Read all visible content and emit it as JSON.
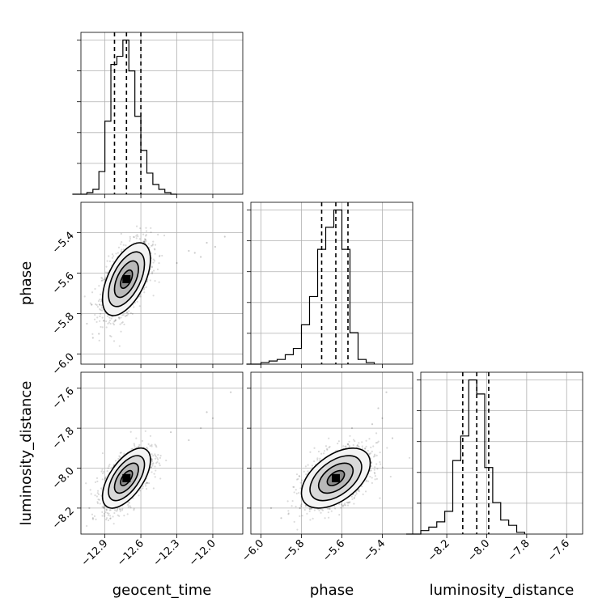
{
  "chart_data": {
    "type": "corner",
    "parameters": [
      {
        "key": "geocent_time",
        "label": "geocent_time",
        "range": [
          -13.1,
          -11.75
        ],
        "ticks": [
          -12.9,
          -12.6,
          -12.3,
          -12.0
        ],
        "tick_labels": [
          "−12.9",
          "−12.6",
          "−12.3",
          "−12.0"
        ],
        "quantiles": [
          -12.82,
          -12.72,
          -12.6
        ]
      },
      {
        "key": "phase",
        "label": "phase",
        "range": [
          -6.05,
          -5.25
        ],
        "ticks": [
          -6.0,
          -5.8,
          -5.6,
          -5.4
        ],
        "tick_labels": [
          "−6.0",
          "−5.8",
          "−5.6",
          "−5.4"
        ],
        "quantiles": [
          -5.7,
          -5.63,
          -5.57
        ]
      },
      {
        "key": "luminosity_distance",
        "label": "luminosity_distance",
        "range": [
          -8.33,
          -7.52
        ],
        "ticks": [
          -8.2,
          -8.0,
          -7.8,
          -7.6
        ],
        "tick_labels": [
          "−8.2",
          "−8.0",
          "−7.8",
          "−7.6"
        ],
        "quantiles": [
          -8.12,
          -8.05,
          -7.99
        ]
      }
    ],
    "histograms": [
      {
        "param": "geocent_time",
        "bin_edges": [
          -13.05,
          -13.0,
          -12.95,
          -12.9,
          -12.85,
          -12.8,
          -12.75,
          -12.7,
          -12.65,
          -12.6,
          -12.55,
          -12.5,
          -12.45,
          -12.4,
          -12.35,
          -12.3
        ],
        "counts": [
          1,
          3,
          14,
          45,
          80,
          85,
          95,
          76,
          48,
          27,
          13,
          6,
          3,
          1,
          0
        ]
      },
      {
        "param": "phase",
        "bin_edges": [
          -6.0,
          -5.96,
          -5.92,
          -5.88,
          -5.84,
          -5.8,
          -5.76,
          -5.72,
          -5.68,
          -5.64,
          -5.6,
          -5.56,
          -5.52,
          -5.48,
          -5.44
        ],
        "counts": [
          1,
          2,
          3,
          6,
          10,
          25,
          43,
          73,
          87,
          98,
          73,
          20,
          3,
          1
        ]
      },
      {
        "param": "luminosity_distance",
        "bin_edges": [
          -8.33,
          -8.29,
          -8.25,
          -8.21,
          -8.17,
          -8.13,
          -8.09,
          -8.05,
          -8.01,
          -7.97,
          -7.93,
          -7.89,
          -7.85,
          -7.81
        ],
        "counts": [
          2,
          4,
          7,
          13,
          42,
          56,
          88,
          80,
          38,
          18,
          8,
          5,
          1
        ]
      }
    ],
    "pairs": [
      {
        "x": "geocent_time",
        "y": "phase",
        "center": [
          -12.72,
          -5.63
        ],
        "sigma": [
          0.1,
          0.09
        ],
        "rho": 0.55,
        "points": 1400,
        "outliers": [
          [
            -12.05,
            -5.45
          ],
          [
            -12.1,
            -5.52
          ],
          [
            -12.2,
            -5.49
          ],
          [
            -12.15,
            -5.5
          ],
          [
            -11.98,
            -5.47
          ],
          [
            -12.3,
            -5.55
          ],
          [
            -11.9,
            -5.42
          ],
          [
            -13.0,
            -5.92
          ],
          [
            -12.95,
            -5.9
          ],
          [
            -13.05,
            -5.85
          ]
        ]
      },
      {
        "x": "geocent_time",
        "y": "luminosity_distance",
        "center": [
          -12.72,
          -8.05
        ],
        "sigma": [
          0.1,
          0.075
        ],
        "rho": 0.6,
        "points": 1400,
        "outliers": [
          [
            -12.05,
            -7.72
          ],
          [
            -12.0,
            -7.75
          ],
          [
            -12.1,
            -7.8
          ],
          [
            -12.35,
            -7.82
          ],
          [
            -11.85,
            -7.62
          ],
          [
            -12.2,
            -7.86
          ],
          [
            -13.0,
            -8.25
          ],
          [
            -13.03,
            -8.2
          ]
        ]
      },
      {
        "x": "phase",
        "y": "luminosity_distance",
        "center": [
          -5.63,
          -8.05
        ],
        "sigma": [
          0.085,
          0.075
        ],
        "rho": 0.5,
        "points": 1400,
        "outliers": [
          [
            -5.38,
            -7.62
          ],
          [
            -5.42,
            -7.7
          ],
          [
            -5.45,
            -7.78
          ],
          [
            -5.4,
            -7.75
          ],
          [
            -5.35,
            -7.85
          ],
          [
            -5.9,
            -8.25
          ],
          [
            -5.95,
            -8.2
          ],
          [
            -5.55,
            -7.8
          ]
        ]
      }
    ],
    "grid": true
  }
}
